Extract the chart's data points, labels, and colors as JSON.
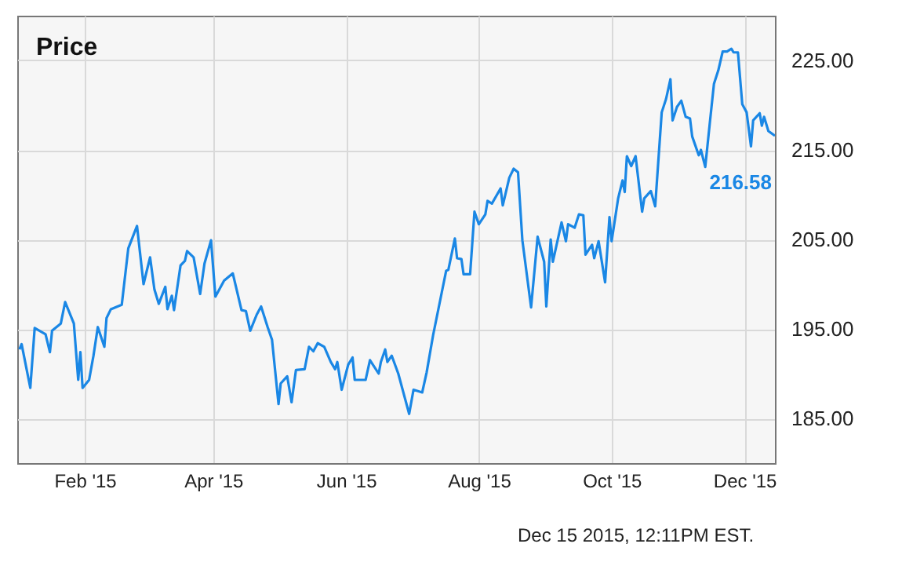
{
  "chart_data": {
    "type": "line",
    "title": "Price",
    "x": [
      "2015-01-02",
      "2015-01-03",
      "2015-01-07",
      "2015-01-09",
      "2015-01-14",
      "2015-01-16",
      "2015-01-17",
      "2015-01-21",
      "2015-01-23",
      "2015-01-27",
      "2015-01-29",
      "2015-01-30",
      "2015-01-31",
      "2015-02-03",
      "2015-02-05",
      "2015-02-07",
      "2015-02-10",
      "2015-02-11",
      "2015-02-13",
      "2015-02-18",
      "2015-02-21",
      "2015-02-25",
      "2015-02-28",
      "2015-03-03",
      "2015-03-05",
      "2015-03-07",
      "2015-03-10",
      "2015-03-11",
      "2015-03-13",
      "2015-03-14",
      "2015-03-17",
      "2015-03-19",
      "2015-03-20",
      "2015-03-23",
      "2015-03-26",
      "2015-03-28",
      "2015-03-31",
      "2015-04-02",
      "2015-04-06",
      "2015-04-10",
      "2015-04-14",
      "2015-04-16",
      "2015-04-18",
      "2015-04-21",
      "2015-04-23",
      "2015-04-26",
      "2015-04-28",
      "2015-05-01",
      "2015-05-02",
      "2015-05-05",
      "2015-05-07",
      "2015-05-09",
      "2015-05-13",
      "2015-05-15",
      "2015-05-17",
      "2015-05-19",
      "2015-05-22",
      "2015-05-25",
      "2015-05-27",
      "2015-05-28",
      "2015-05-30",
      "2015-06-02",
      "2015-06-04",
      "2015-06-05",
      "2015-06-10",
      "2015-06-12",
      "2015-06-16",
      "2015-06-17",
      "2015-06-19",
      "2015-06-20",
      "2015-06-22",
      "2015-06-25",
      "2015-06-30",
      "2015-07-02",
      "2015-07-06",
      "2015-07-08",
      "2015-07-11",
      "2015-07-15",
      "2015-07-17",
      "2015-07-18",
      "2015-07-21",
      "2015-07-22",
      "2015-07-24",
      "2015-07-25",
      "2015-07-28",
      "2015-07-30",
      "2015-08-01",
      "2015-08-04",
      "2015-08-05",
      "2015-08-07",
      "2015-08-11",
      "2015-08-12",
      "2015-08-15",
      "2015-08-17",
      "2015-08-19",
      "2015-08-21",
      "2015-08-25",
      "2015-08-28",
      "2015-08-31",
      "2015-09-01",
      "2015-09-03",
      "2015-09-04",
      "2015-09-08",
      "2015-09-10",
      "2015-09-11",
      "2015-09-14",
      "2015-09-16",
      "2015-09-18",
      "2015-09-19",
      "2015-09-22",
      "2015-09-23",
      "2015-09-25",
      "2015-09-28",
      "2015-09-30",
      "2015-10-01",
      "2015-10-04",
      "2015-10-06",
      "2015-10-07",
      "2015-10-08",
      "2015-10-10",
      "2015-10-12",
      "2015-10-15",
      "2015-10-16",
      "2015-10-19",
      "2015-10-21",
      "2015-10-24",
      "2015-10-26",
      "2015-10-28",
      "2015-10-29",
      "2015-10-31",
      "2015-11-02",
      "2015-11-04",
      "2015-11-06",
      "2015-11-07",
      "2015-11-10",
      "2015-11-11",
      "2015-11-13",
      "2015-11-15",
      "2015-11-17",
      "2015-11-19",
      "2015-11-21",
      "2015-11-23",
      "2015-11-25",
      "2015-11-26",
      "2015-11-28",
      "2015-11-30",
      "2015-12-02",
      "2015-12-04",
      "2015-12-05",
      "2015-12-08",
      "2015-12-09",
      "2015-12-10",
      "2015-12-12",
      "2015-12-15"
    ],
    "series": [
      {
        "color": "#1a87e5",
        "values": [
          192.7,
          193.3,
          188.4,
          195.1,
          194.4,
          192.4,
          194.8,
          195.6,
          198.0,
          195.6,
          189.3,
          192.4,
          188.4,
          189.3,
          192.0,
          195.2,
          193.0,
          196.2,
          197.2,
          197.7,
          204.0,
          206.5,
          200.0,
          203.0,
          199.4,
          197.8,
          199.7,
          197.2,
          198.7,
          197.1,
          202.1,
          202.6,
          203.7,
          203.0,
          198.9,
          202.3,
          204.9,
          198.6,
          200.4,
          201.2,
          197.1,
          197.0,
          194.8,
          196.6,
          197.5,
          195.2,
          193.8,
          186.6,
          188.9,
          189.7,
          186.8,
          190.4,
          190.5,
          193.0,
          192.5,
          193.4,
          193.0,
          191.3,
          190.5,
          191.3,
          188.2,
          191.0,
          191.8,
          189.3,
          189.3,
          191.5,
          190.0,
          191.3,
          192.7,
          191.3,
          192.0,
          190.0,
          185.5,
          188.2,
          187.9,
          190.1,
          194.3,
          199.1,
          201.5,
          201.6,
          205.1,
          202.9,
          202.8,
          201.1,
          201.1,
          208.1,
          206.7,
          207.8,
          209.3,
          209.0,
          210.7,
          208.8,
          211.9,
          212.9,
          212.5,
          204.9,
          197.4,
          205.3,
          202.5,
          197.5,
          205.0,
          202.5,
          206.9,
          204.8,
          206.7,
          206.3,
          207.8,
          207.7,
          203.3,
          204.4,
          202.9,
          204.8,
          200.2,
          207.5,
          204.8,
          209.6,
          211.6,
          210.3,
          214.3,
          213.2,
          214.3,
          208.1,
          209.6,
          210.4,
          208.7,
          219.2,
          220.7,
          222.9,
          218.3,
          219.8,
          220.5,
          218.7,
          218.5,
          216.5,
          214.4,
          215.0,
          213.1,
          217.8,
          222.4,
          223.9,
          226.0,
          226.0,
          226.3,
          225.9,
          225.9,
          220.1,
          219.2,
          215.4,
          218.3,
          219.1,
          217.7,
          218.7,
          217.1,
          216.58
        ]
      }
    ],
    "xlim": [
      "2015-01-01",
      "2015-12-15"
    ],
    "xticks": [
      {
        "value": "2015-02-01",
        "label": "Feb '15"
      },
      {
        "value": "2015-04-01",
        "label": "Apr '15"
      },
      {
        "value": "2015-06-01",
        "label": "Jun '15"
      },
      {
        "value": "2015-08-01",
        "label": "Aug '15"
      },
      {
        "value": "2015-10-01",
        "label": "Oct '15"
      },
      {
        "value": "2015-12-01",
        "label": "Dec '15"
      }
    ],
    "ylim": [
      180,
      230
    ],
    "yticks": [
      {
        "value": 185,
        "label": "185.00"
      },
      {
        "value": 195,
        "label": "195.00"
      },
      {
        "value": 205,
        "label": "205.00"
      },
      {
        "value": 215,
        "label": "215.00"
      },
      {
        "value": 225,
        "label": "225.00"
      }
    ],
    "grid": true,
    "marker": "none",
    "line_style": "solid",
    "annotations": [
      {
        "text": "216.58",
        "x": "2015-12-15",
        "y": 216.58
      },
      "Dec 15 2015, 12:11PM EST."
    ]
  }
}
